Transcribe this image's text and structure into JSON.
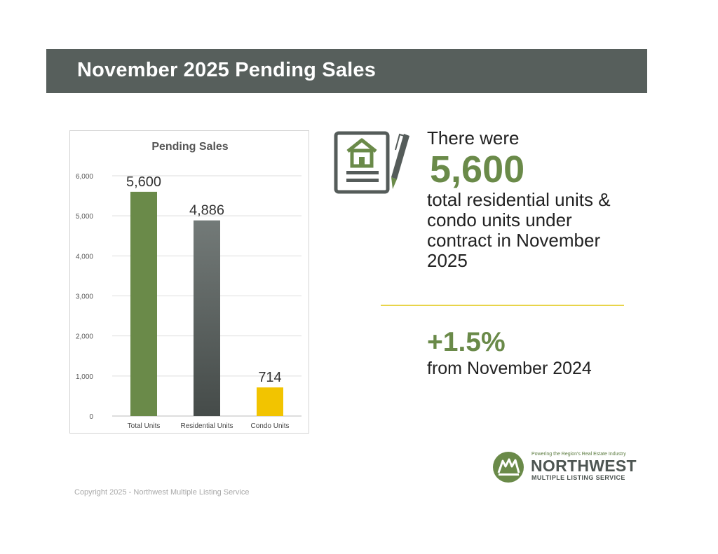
{
  "banner": {
    "title": "November 2025 Pending Sales"
  },
  "stat": {
    "lead": "There were",
    "big_number": "5,600",
    "description": "total residential units & condo units under contract in November 2025"
  },
  "change": {
    "value": "+1.5%",
    "description": "from November 2024"
  },
  "logo": {
    "tagline": "Powering the Region's Real Estate Industry",
    "name": "NORTHWEST",
    "sub": "MULTIPLE LISTING SERVICE"
  },
  "copyright": "Copyright 2025 - Northwest Multiple Listing Service",
  "icons": {
    "document": "house-document-icon",
    "pencil": "pencil-icon",
    "logo": "nwmls-logo-icon"
  },
  "colors": {
    "green": "#6a8a49",
    "gray_dark": "#4a504e",
    "gray_light": "#707775",
    "yellow": "#f2c400",
    "banner": "#575f5c"
  },
  "chart_data": {
    "type": "bar",
    "title": "Pending Sales",
    "categories": [
      "Total Units",
      "Residential Units",
      "Condo Units"
    ],
    "values": [
      5600,
      4886,
      714
    ],
    "value_labels": [
      "5,600",
      "4,886",
      "714"
    ],
    "bar_colors": [
      "#6a8a49",
      "gradient-gray",
      "#f2c400"
    ],
    "ylim": [
      0,
      6000
    ],
    "yticks": [
      0,
      1000,
      2000,
      3000,
      4000,
      5000,
      6000
    ],
    "ytick_labels": [
      "0",
      "1,000",
      "2,000",
      "3,000",
      "4,000",
      "5,000",
      "6,000"
    ],
    "xlabel": "",
    "ylabel": "",
    "grid": true,
    "legend": "none"
  }
}
